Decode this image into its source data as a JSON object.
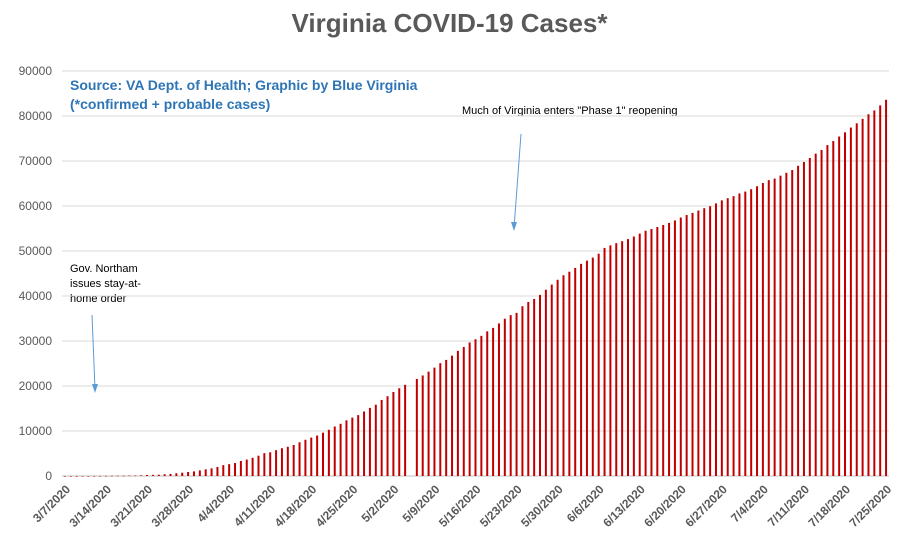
{
  "chart_data": {
    "type": "bar",
    "title": "Virginia COVID-19 Cases*",
    "source_note": "Source: VA Dept. of Health; Graphic by Blue Virginia",
    "footnote": "(*confirmed + probable cases)",
    "xlabel": "",
    "ylabel": "",
    "ylim": [
      0,
      90000
    ],
    "y_ticks": [
      0,
      10000,
      20000,
      30000,
      40000,
      50000,
      60000,
      70000,
      80000,
      90000
    ],
    "x_tick_labels": [
      "3/7/2020",
      "3/14/2020",
      "3/21/2020",
      "3/28/2020",
      "4/4/2020",
      "4/11/2020",
      "4/18/2020",
      "4/25/2020",
      "5/2/2020",
      "5/9/2020",
      "5/16/2020",
      "5/23/2020",
      "5/30/2020",
      "6/6/2020",
      "6/13/2020",
      "6/20/2020",
      "6/27/2020",
      "7/4/2020",
      "7/11/2020",
      "7/18/2020",
      "7/25/2020"
    ],
    "first_date": "3/7/2020",
    "last_date": "7/25/2020",
    "grid": true,
    "bar_color": "#c00000",
    "annotations": [
      {
        "text": "Much of Virginia enters \"Phase 1\" reopening"
      },
      {
        "text": "Gov. Northam issues stay-at-home order"
      }
    ],
    "series": [
      {
        "values": [
          2,
          3,
          3,
          5,
          9,
          12,
          17,
          30,
          45,
          67,
          77,
          99,
          114,
          152,
          219,
          254,
          290,
          391,
          460,
          604,
          739,
          890,
          1020,
          1250,
          1484,
          1706,
          2012,
          2407,
          2637,
          2878,
          3333,
          3645,
          4042,
          4509,
          5077,
          5274,
          5747,
          6171,
          6500,
          6889,
          7491,
          8053,
          8537,
          8990,
          9630,
          10266,
          10998,
          11594,
          12366,
          12970,
          13535,
          14339,
          15130,
          15846,
          16901,
          17731,
          18671,
          19492,
          20256,
          0,
          21570,
          22342,
          23196,
          24081,
          25070,
          25800,
          26746,
          27813,
          28672,
          29683,
          30388,
          31140,
          32145,
          32908,
          33908,
          34950,
          35749,
          36244,
          37727,
          38672,
          39342,
          40249,
          41401,
          42533,
          43611,
          44607,
          45398,
          46239,
          47146,
          47856,
          48532,
          49397,
          50681,
          51251,
          51738,
          52177,
          52647,
          53211,
          53869,
          54506,
          54886,
          55331,
          55775,
          56238,
          56793,
          57443,
          57994,
          58465,
          58994,
          59514,
          59946,
          60570,
          61247,
          61736,
          62189,
          62787,
          63203,
          63735,
          64393,
          65109,
          65748,
          66102,
          66740,
          67375,
          67988,
          68931,
          69782,
          70670,
          71642,
          72443,
          73527,
          74431,
          75433,
          76373,
          77430,
          78375,
          79371,
          80393,
          81237,
          82364,
          83609
        ]
      }
    ]
  }
}
